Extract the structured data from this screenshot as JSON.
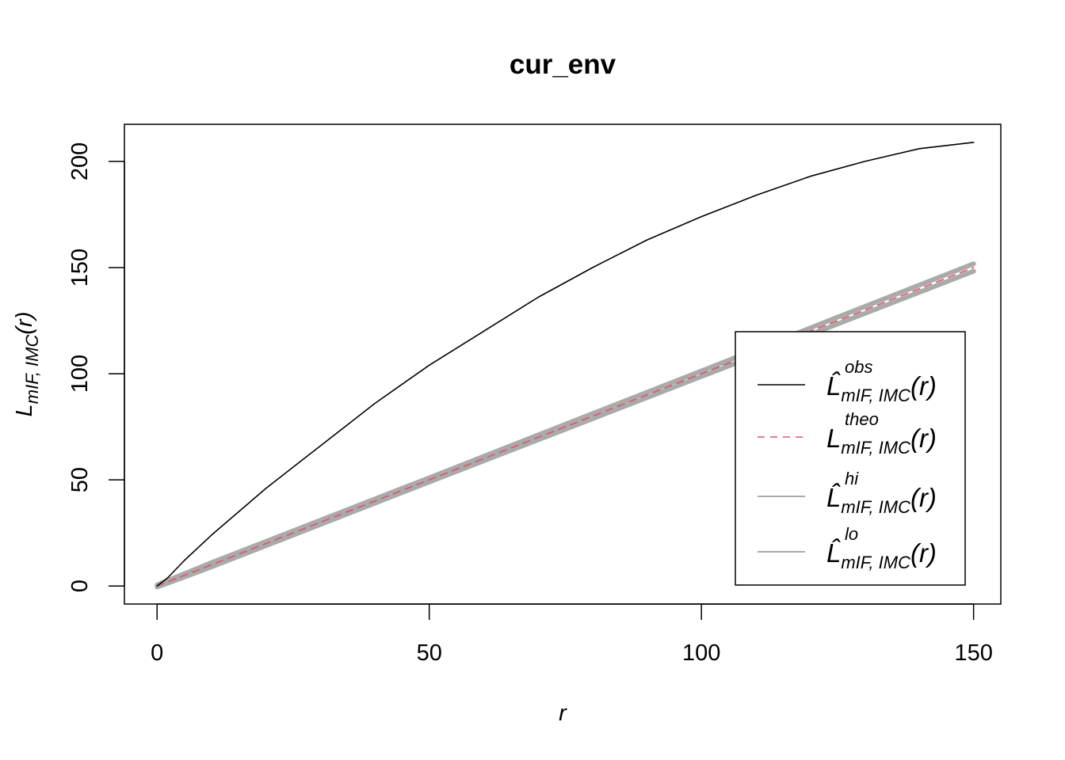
{
  "chart_data": {
    "type": "line",
    "title": "cur_env",
    "xlabel": "r",
    "ylabel": {
      "main": "L",
      "sub": "mIF, IMC",
      "suffix": "(r)"
    },
    "xlim": [
      -6,
      155
    ],
    "ylim": [
      -8.5,
      217.5
    ],
    "x_ticks": [
      0,
      50,
      100,
      150
    ],
    "y_ticks": [
      0,
      50,
      100,
      150,
      200
    ],
    "grid": false,
    "legend_position": "bottom-right",
    "series": [
      {
        "name": "obs",
        "legend": {
          "main": "L̂",
          "sup": "obs",
          "sub": "mIF, IMC",
          "suffix": "(r)"
        },
        "style": "solid",
        "color": "#000000",
        "x": [
          0,
          2,
          5,
          10,
          20,
          30,
          40,
          50,
          60,
          70,
          80,
          90,
          100,
          110,
          120,
          130,
          140,
          150
        ],
        "y": [
          0,
          4,
          12,
          24,
          46,
          66,
          86,
          104,
          120,
          136,
          150,
          163,
          174,
          184,
          193,
          200,
          206,
          209
        ]
      },
      {
        "name": "theo",
        "legend": {
          "main": "L",
          "sup": "theo",
          "sub": "mIF, IMC",
          "suffix": "(r)"
        },
        "style": "dashed",
        "color": "#DF536B",
        "x": [
          0,
          150
        ],
        "y": [
          0,
          150
        ]
      },
      {
        "name": "hi",
        "legend": {
          "main": "L̂",
          "sup": "hi",
          "sub": "mIF, IMC",
          "suffix": "(r)"
        },
        "style": "solid",
        "color": "#AAAAAA",
        "x": [
          0,
          5,
          10,
          25,
          50,
          75,
          100,
          125,
          150
        ],
        "y": [
          0.5,
          5.8,
          11,
          26,
          51,
          76.2,
          101.3,
          126.6,
          151.8
        ]
      },
      {
        "name": "lo",
        "legend": {
          "main": "L̂",
          "sup": "lo",
          "sub": "mIF, IMC",
          "suffix": "(r)"
        },
        "style": "solid",
        "color": "#AAAAAA",
        "x": [
          0,
          5,
          10,
          25,
          50,
          75,
          100,
          125,
          150
        ],
        "y": [
          -0.5,
          4.2,
          9,
          24,
          49,
          73.8,
          98.7,
          123.4,
          148.3
        ]
      }
    ]
  }
}
